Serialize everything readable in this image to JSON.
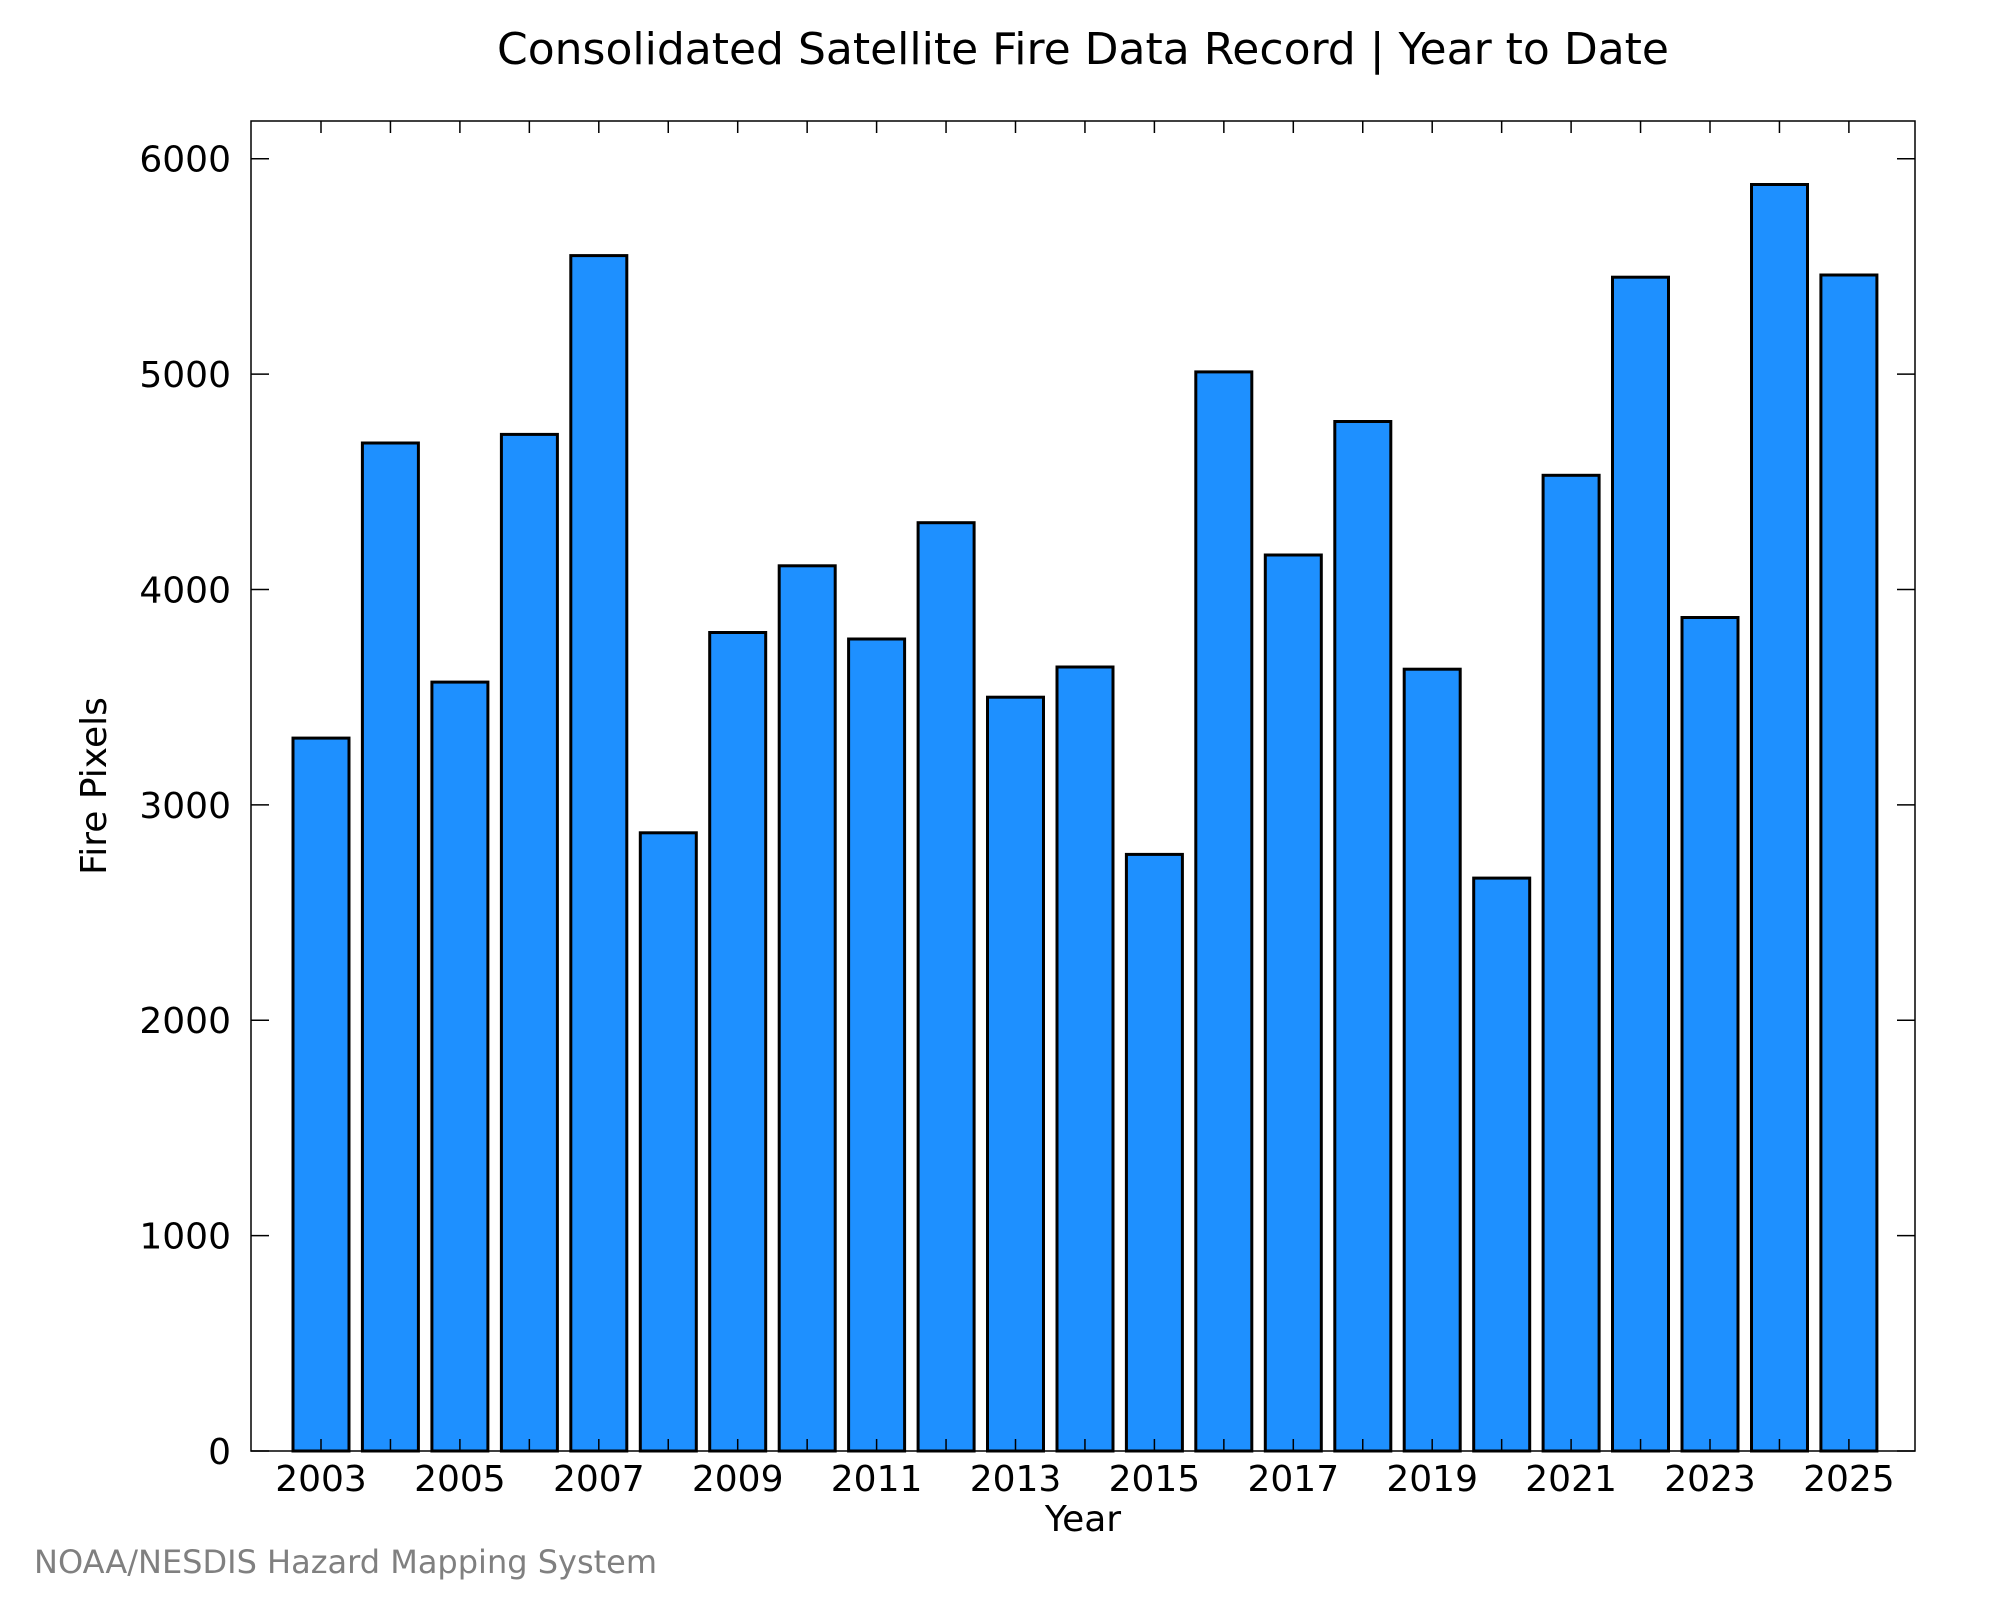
{
  "chart_data": {
    "type": "bar",
    "title": "Consolidated Satellite Fire Data Record | Year to Date",
    "xlabel": "Year",
    "ylabel": "Fire Pixels",
    "categories": [
      "2003",
      "2004",
      "2005",
      "2006",
      "2007",
      "2008",
      "2009",
      "2010",
      "2011",
      "2012",
      "2013",
      "2014",
      "2015",
      "2016",
      "2017",
      "2018",
      "2019",
      "2020",
      "2021",
      "2022",
      "2023",
      "2024",
      "2025"
    ],
    "values": [
      3310,
      4680,
      3570,
      4720,
      5550,
      2870,
      3800,
      4110,
      3770,
      4310,
      3500,
      3640,
      2770,
      5010,
      4160,
      4780,
      3630,
      2660,
      4530,
      5450,
      3870,
      5880,
      5460
    ],
    "x_tick_labels": [
      "2003",
      "2005",
      "2007",
      "2009",
      "2011",
      "2013",
      "2015",
      "2017",
      "2019",
      "2021",
      "2023",
      "2025"
    ],
    "y_ticks": [
      0,
      1000,
      2000,
      3000,
      4000,
      5000,
      6000
    ],
    "ylim": [
      0,
      6175
    ],
    "grid": false,
    "bar_color": "#1e90ff",
    "bar_edge_color": "#000000"
  },
  "credit": "NOAA/NESDIS Hazard Mapping System"
}
